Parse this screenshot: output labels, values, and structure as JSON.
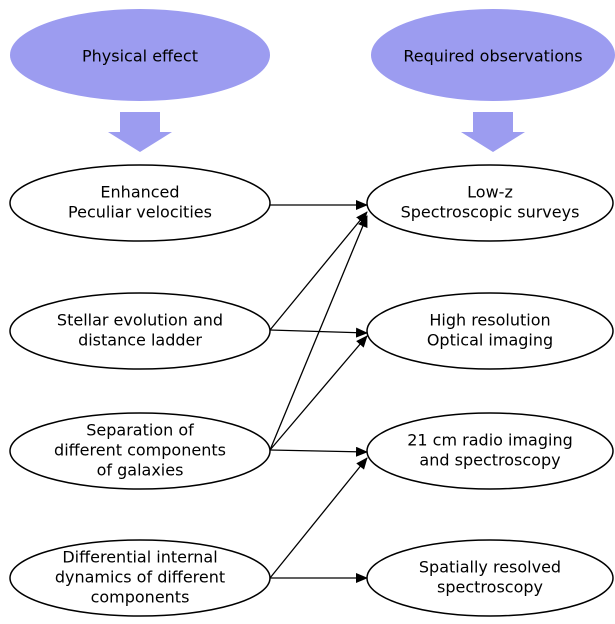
{
  "headers": {
    "left": "Physical effect",
    "right": "Required observations"
  },
  "effects": [
    {
      "lines": [
        "Enhanced",
        "Peculiar velocities"
      ]
    },
    {
      "lines": [
        "Stellar evolution and",
        "distance ladder"
      ]
    },
    {
      "lines": [
        "Separation of",
        "different components",
        "of galaxies"
      ]
    },
    {
      "lines": [
        "Differential internal",
        "dynamics of different",
        "components"
      ]
    }
  ],
  "observations": [
    {
      "lines": [
        "Low-z",
        "Spectroscopic surveys"
      ]
    },
    {
      "lines": [
        "High resolution",
        "Optical imaging"
      ]
    },
    {
      "lines": [
        "21 cm radio imaging",
        "and spectroscopy"
      ]
    },
    {
      "lines": [
        "Spatially resolved",
        "spectroscopy"
      ]
    }
  ]
}
